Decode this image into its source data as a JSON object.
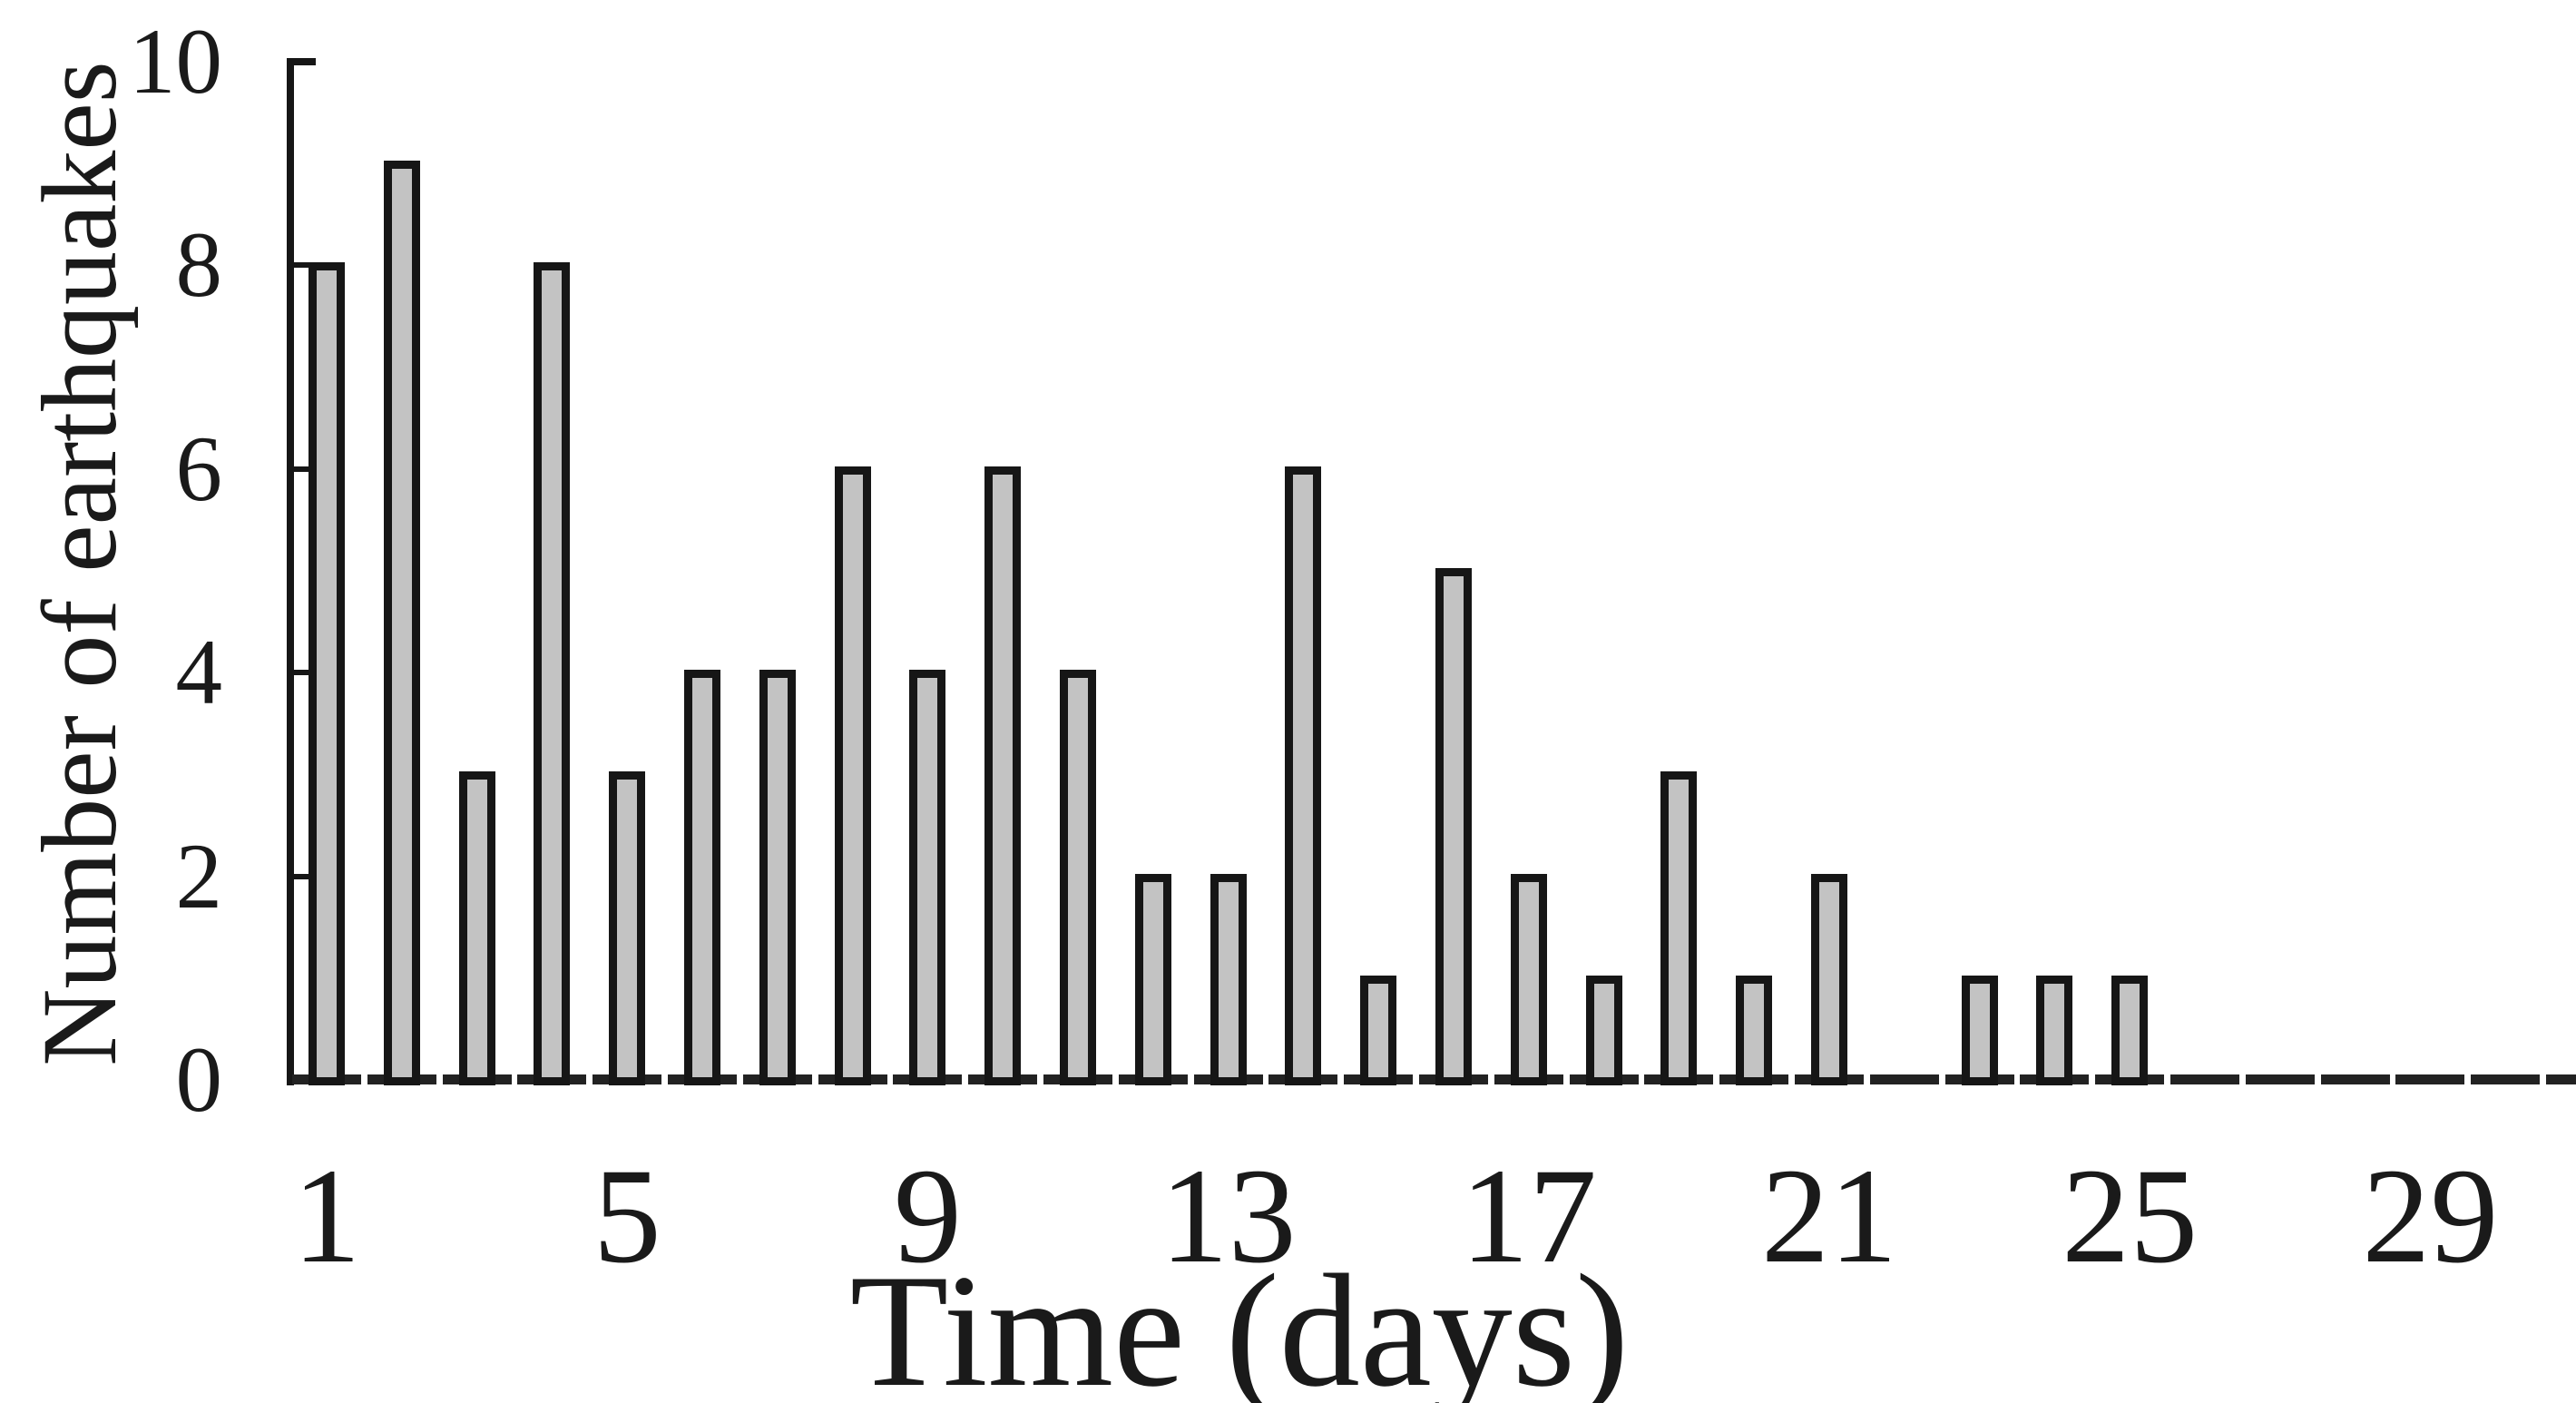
{
  "chart_data": {
    "type": "bar",
    "title": "",
    "xlabel": "Time (days)",
    "ylabel": "Number of earthquakes",
    "x": [
      1,
      2,
      3,
      4,
      5,
      6,
      7,
      8,
      9,
      10,
      11,
      12,
      13,
      14,
      15,
      16,
      17,
      18,
      19,
      20,
      21,
      22,
      23,
      24,
      25,
      26,
      27,
      28,
      29,
      30
    ],
    "values": [
      8,
      9,
      3,
      8,
      3,
      4,
      4,
      6,
      4,
      6,
      4,
      2,
      2,
      6,
      1,
      5,
      2,
      1,
      3,
      1,
      2,
      0,
      1,
      1,
      1,
      0,
      0,
      0,
      0,
      0
    ],
    "xticks": [
      1,
      5,
      9,
      13,
      17,
      21,
      25,
      29
    ],
    "xtick_labels": [
      "1",
      "5",
      "9",
      "13",
      "17",
      "21",
      "25",
      "29"
    ],
    "yticks": [
      0,
      2,
      4,
      6,
      8,
      10
    ],
    "ytick_labels": [
      "0",
      "2",
      "4",
      "6",
      "8",
      "10"
    ],
    "ylim": [
      0,
      10
    ],
    "xlim": [
      1,
      30
    ],
    "grid": false,
    "legend": false,
    "bar_fill_color": "#c3c3c3",
    "bar_border_color": "#161616",
    "axis_color": "#161616",
    "baseline_style": "dashed"
  }
}
